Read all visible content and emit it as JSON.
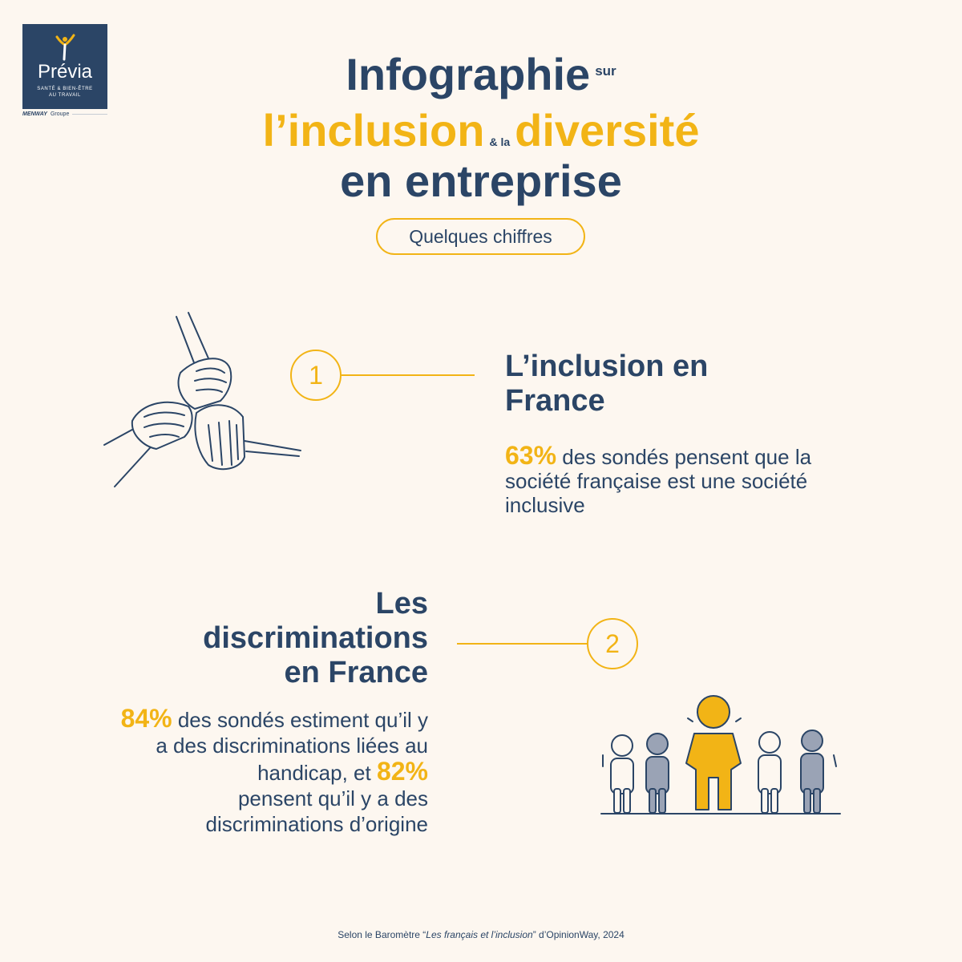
{
  "logo": {
    "name": "Prévia",
    "tagline_1": "SANTÉ & BIEN-ÊTRE",
    "tagline_2": "AU TRAVAIL",
    "group_brand": "MENWAY",
    "group_label": "Groupe",
    "icon": "figure-arms-up-icon"
  },
  "title": {
    "line1_main": "Infographie",
    "line1_small": "sur",
    "line2_left": "l’inclusion",
    "line2_small": "& la",
    "line2_right": "diversité",
    "line3": "en entreprise"
  },
  "subtitle_pill": "Quelques chiffres",
  "section1": {
    "number": "1",
    "heading": "L’inclusion en France",
    "stat": "63%",
    "text": " des sondés pensent que la société française est une société inclusive",
    "illustration": "joined-hands-icon"
  },
  "section2": {
    "number": "2",
    "heading_line1": "Les",
    "heading_line2": "discriminations",
    "heading_line3": "en France",
    "stat1": "84%",
    "text1": " des sondés estiment qu’il y a des discriminations liées au handicap, et ",
    "stat2": "82%",
    "text2": " pensent qu’il y a des discriminations d’origine",
    "illustration": "group-of-people-icon"
  },
  "footer": {
    "prefix": "Selon le Baromètre “",
    "title": "Les français et l’inclusion",
    "suffix": "” d’OpinionWay, 2024"
  },
  "colors": {
    "navy": "#2b4566",
    "gold": "#f2b416",
    "background": "#fdf7f0",
    "grey_figure": "#9aa3b5"
  }
}
